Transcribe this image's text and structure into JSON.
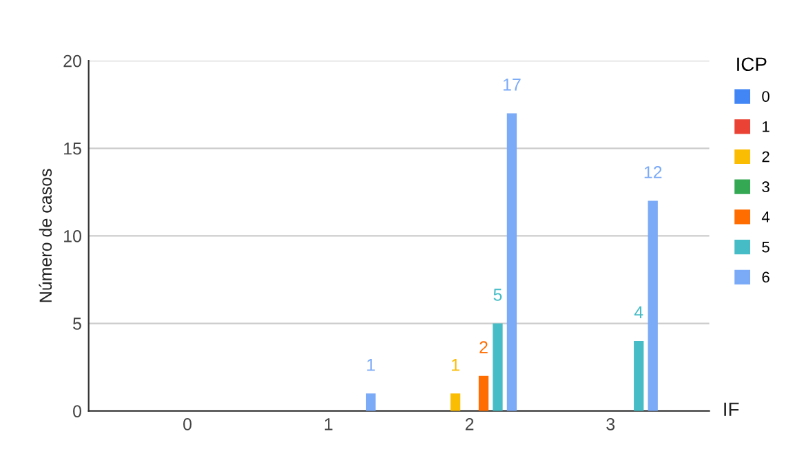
{
  "chart_data": {
    "type": "bar",
    "xlabel": "IF",
    "ylabel": "Número de casos",
    "legend_title": "ICP",
    "categories": [
      "0",
      "1",
      "2",
      "3"
    ],
    "series": [
      {
        "name": "0",
        "color": "#4285f4",
        "values": [
          0,
          0,
          0,
          0
        ],
        "value_labels": [
          null,
          null,
          null,
          null
        ]
      },
      {
        "name": "1",
        "color": "#ea4335",
        "values": [
          0,
          0,
          0,
          0
        ],
        "value_labels": [
          null,
          null,
          null,
          null
        ]
      },
      {
        "name": "2",
        "color": "#fbbc04",
        "values": [
          0,
          0,
          1,
          0
        ],
        "value_labels": [
          null,
          null,
          "1",
          null
        ]
      },
      {
        "name": "3",
        "color": "#34a853",
        "values": [
          0,
          0,
          0,
          0
        ],
        "value_labels": [
          null,
          null,
          null,
          null
        ]
      },
      {
        "name": "4",
        "color": "#ff6d01",
        "values": [
          0,
          0,
          2,
          0
        ],
        "value_labels": [
          null,
          null,
          "2",
          null
        ]
      },
      {
        "name": "5",
        "color": "#46bdc6",
        "values": [
          0,
          0,
          5,
          4
        ],
        "value_labels": [
          null,
          null,
          "5",
          "4"
        ]
      },
      {
        "name": "6",
        "color": "#7baaf7",
        "values": [
          0,
          1,
          17,
          12
        ],
        "value_labels": [
          null,
          "1",
          "17",
          "12"
        ]
      }
    ],
    "ylim": [
      0,
      20
    ],
    "yticks": [
      0,
      5,
      10,
      15,
      20
    ],
    "grid": "y",
    "legend": "right"
  }
}
